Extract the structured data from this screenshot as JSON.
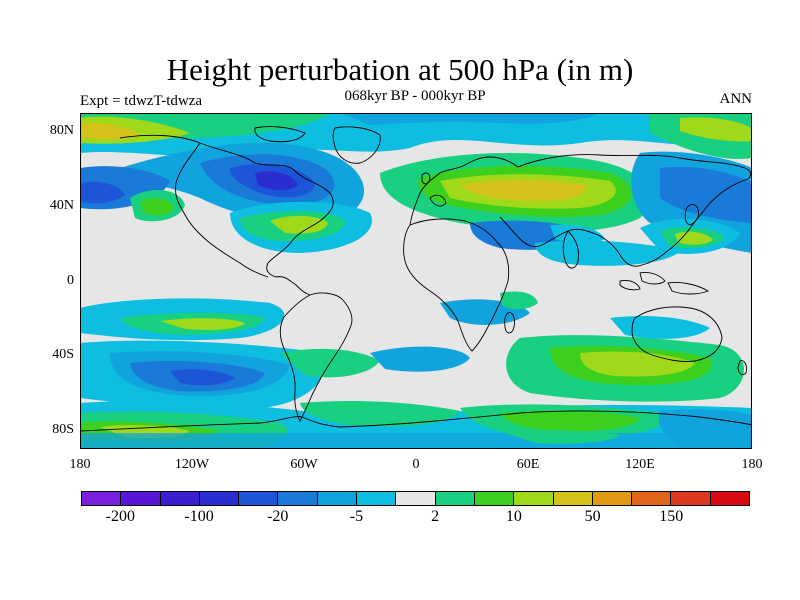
{
  "title": "Height perturbation at 500 hPa (in m)",
  "subtitle": "068kyr BP - 000kyr BP",
  "experiment": "Expt = tdwzT-tdwza",
  "season": "ANN",
  "lat_labels": [
    "80N",
    "40N",
    "0",
    "40S",
    "80S"
  ],
  "lon_labels": [
    "180",
    "120W",
    "60W",
    "0",
    "60E",
    "120E",
    "180"
  ],
  "colorbar": {
    "colors": [
      "#7a1ee0",
      "#5a14d8",
      "#3c1ecf",
      "#2a2ed0",
      "#1c55d8",
      "#1a7ad8",
      "#11a3dd",
      "#0dbee0",
      "#e6e6e6",
      "#19d080",
      "#3ccf1e",
      "#a0d81a",
      "#d4c21a",
      "#e09a14",
      "#e0661a",
      "#dc3a1e",
      "#d80a10"
    ],
    "labels": [
      "-200",
      "-100",
      "-20",
      "-5",
      "2",
      "10",
      "50",
      "150"
    ]
  },
  "field_colors": {
    "background": "#e6e6e6",
    "cyan": "#0dbee0",
    "light_blue": "#11a3dd",
    "mid_blue": "#1a7ad8",
    "blue": "#1c55d8",
    "dark_blue": "#2a2ed0",
    "green": "#19d080",
    "bright_green": "#3ccf1e",
    "yellow_green": "#a0d81a",
    "yellow": "#d4c21a",
    "coastline": "#000000"
  }
}
